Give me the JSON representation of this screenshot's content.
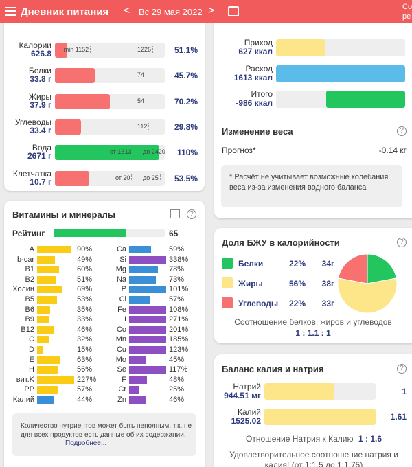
{
  "header": {
    "title": "Дневник питания",
    "date": "Вс 29 мая 2022",
    "right_cut": [
      "Со",
      "ре"
    ]
  },
  "nutrients": {
    "rows": [
      {
        "name": "Калории",
        "amount": "626.8",
        "fill": 11,
        "color": "#f87171",
        "markers": [
          "min 1152",
          "1226"
        ],
        "percent": "51.1%"
      },
      {
        "name": "Белки",
        "amount": "33.8 г",
        "fill": 36,
        "color": "#f87171",
        "markers": [
          "74"
        ],
        "percent": "45.7%"
      },
      {
        "name": "Жиры",
        "amount": "37.9 г",
        "fill": 50,
        "color": "#f87171",
        "markers": [
          "54"
        ],
        "percent": "70.2%"
      },
      {
        "name": "Углеводы",
        "amount": "33.4 г",
        "fill": 24,
        "color": "#f87171",
        "markers": [
          "112"
        ],
        "percent": "29.8%"
      },
      {
        "name": "Вода",
        "amount": "2671 г",
        "fill": 95,
        "color": "#22c55e",
        "markers": [
          "от 1613",
          "до 2420"
        ],
        "percent": "110%"
      },
      {
        "name": "Клетчатка",
        "amount": "10.7 г",
        "fill": 31,
        "color": "#f87171",
        "markers": [
          "от 20",
          "до 25"
        ],
        "percent": "53.5%"
      }
    ]
  },
  "vitamins": {
    "title": "Витамины и минералы",
    "rating_label": "Рейтинг",
    "rating": 65,
    "left": [
      {
        "name": "A",
        "value": 90,
        "label": "90%",
        "color": "#facc15"
      },
      {
        "name": "b-car",
        "value": 49,
        "label": "49%",
        "color": "#facc15"
      },
      {
        "name": "B1",
        "value": 60,
        "label": "60%",
        "color": "#facc15"
      },
      {
        "name": "B2",
        "value": 51,
        "label": "51%",
        "color": "#facc15"
      },
      {
        "name": "Холин",
        "value": 69,
        "label": "69%",
        "color": "#facc15"
      },
      {
        "name": "B5",
        "value": 53,
        "label": "53%",
        "color": "#facc15"
      },
      {
        "name": "B6",
        "value": 35,
        "label": "35%",
        "color": "#facc15"
      },
      {
        "name": "B9",
        "value": 33,
        "label": "33%",
        "color": "#facc15"
      },
      {
        "name": "B12",
        "value": 46,
        "label": "46%",
        "color": "#facc15"
      },
      {
        "name": "C",
        "value": 32,
        "label": "32%",
        "color": "#facc15"
      },
      {
        "name": "D",
        "value": 15,
        "label": "15%",
        "color": "#facc15"
      },
      {
        "name": "E",
        "value": 63,
        "label": "63%",
        "color": "#facc15"
      },
      {
        "name": "H",
        "value": 56,
        "label": "56%",
        "color": "#facc15"
      },
      {
        "name": "вит.K",
        "value": 227,
        "label": "227%",
        "color": "#facc15"
      },
      {
        "name": "PP",
        "value": 57,
        "label": "57%",
        "color": "#facc15"
      },
      {
        "name": "Калий",
        "value": 44,
        "label": "44%",
        "color": "#3b8fd6"
      }
    ],
    "right": [
      {
        "name": "Ca",
        "value": 59,
        "label": "59%",
        "color": "#3b8fd6"
      },
      {
        "name": "Si",
        "value": 338,
        "label": "338%",
        "color": "#8e4fc2"
      },
      {
        "name": "Mg",
        "value": 78,
        "label": "78%",
        "color": "#3b8fd6"
      },
      {
        "name": "Na",
        "value": 73,
        "label": "73%",
        "color": "#3b8fd6"
      },
      {
        "name": "P",
        "value": 101,
        "label": "101%",
        "color": "#3b8fd6"
      },
      {
        "name": "Cl",
        "value": 57,
        "label": "57%",
        "color": "#3b8fd6"
      },
      {
        "name": "Fe",
        "value": 108,
        "label": "108%",
        "color": "#8e4fc2"
      },
      {
        "name": "I",
        "value": 271,
        "label": "271%",
        "color": "#8e4fc2"
      },
      {
        "name": "Co",
        "value": 201,
        "label": "201%",
        "color": "#8e4fc2"
      },
      {
        "name": "Mn",
        "value": 185,
        "label": "185%",
        "color": "#8e4fc2"
      },
      {
        "name": "Cu",
        "value": 123,
        "label": "123%",
        "color": "#8e4fc2"
      },
      {
        "name": "Mo",
        "value": 45,
        "label": "45%",
        "color": "#8e4fc2"
      },
      {
        "name": "Se",
        "value": 117,
        "label": "117%",
        "color": "#8e4fc2"
      },
      {
        "name": "F",
        "value": 48,
        "label": "48%",
        "color": "#8e4fc2"
      },
      {
        "name": "Cr",
        "value": 25,
        "label": "25%",
        "color": "#8e4fc2"
      },
      {
        "name": "Zn",
        "value": 46,
        "label": "46%",
        "color": "#8e4fc2"
      }
    ],
    "note": "Количество нутриентов может быть неполным, т.к. не для всех продуктов есть данные об их содержании.",
    "link": "Подробнее..."
  },
  "balance": {
    "rows": [
      {
        "name": "Приход",
        "amount": "627 ккал",
        "fill": 38,
        "color": "#fde68a"
      },
      {
        "name": "Расход",
        "amount": "1613 ккал",
        "fill": 100,
        "color": "#5bbbe9"
      },
      {
        "name": "Итого",
        "amount": "-986 ккал",
        "fill": 61,
        "color": "#22c55e"
      }
    ]
  },
  "weight": {
    "title": "Изменение веса",
    "forecast_label": "Прогноз*",
    "forecast": "-0.14 кг",
    "note": "* Расчёт не учитывает возможные колебания веса из-за изменения водного баланса"
  },
  "macros": {
    "title": "Доля БЖУ в калорийности",
    "rows": [
      {
        "name": "Белки",
        "color": "#22c55e",
        "share": 22,
        "share_label": "22%",
        "grams": "34г"
      },
      {
        "name": "Жиры",
        "color": "#fde68a",
        "share": 56,
        "share_label": "56%",
        "grams": "38г"
      },
      {
        "name": "Углеводы",
        "color": "#f87171",
        "share": 22,
        "share_label": "22%",
        "grams": "33г"
      }
    ],
    "caption": "Соотношение белков, жиров и углеводов",
    "ratio": "1 : 1.1 : 1"
  },
  "potassium": {
    "title": "Баланс калия и натрия",
    "rows": [
      {
        "name": "Натрий",
        "amount": "944.51 мг",
        "fill": 63,
        "color": "#fde68a",
        "ratio": "1"
      },
      {
        "name": "Калий",
        "amount": "1525.02",
        "fill": 100,
        "color": "#fde68a",
        "ratio": "1.61"
      }
    ],
    "ratio_label": "Отношение Натрия к Калию",
    "ratio": "1 : 1.6",
    "verdict": "Удовлетворительное соотношение натрия и калия! (от 1:1.5 до 1:1.75)"
  }
}
